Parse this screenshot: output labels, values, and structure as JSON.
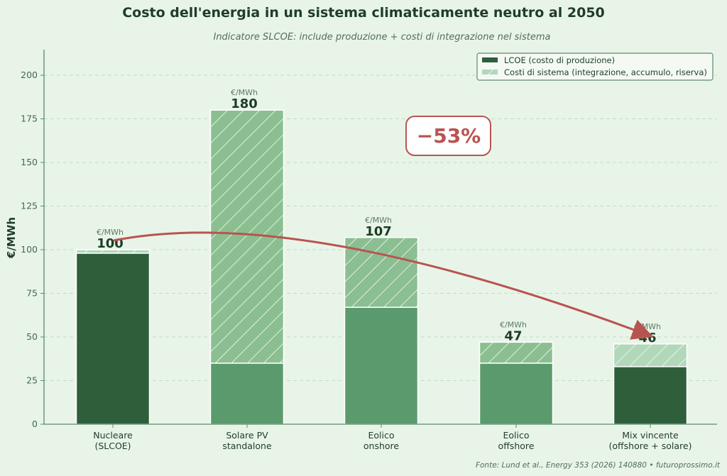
{
  "chart_data": {
    "type": "bar",
    "stacked": true,
    "title": "Costo dell'energia in un sistema climaticamente neutro al 2050",
    "subtitle": "Indicatore SLCOE: include produzione + costi di integrazione nel sistema",
    "ylabel": "€/MWh",
    "xlabel": "",
    "ylim": [
      0,
      215
    ],
    "yticks": [
      0,
      25,
      50,
      75,
      100,
      125,
      150,
      175,
      200
    ],
    "grid": true,
    "legend_position": "top-right",
    "categories": [
      [
        "Nucleare",
        "(SLCOE)"
      ],
      [
        "Solare PV",
        "standalone"
      ],
      [
        "Eolico",
        "onshore"
      ],
      [
        "Eolico",
        "offshore"
      ],
      [
        "Mix vincente",
        "(offshore + solare)"
      ]
    ],
    "series": [
      {
        "name": "LCOE (costo di produzione)",
        "values": [
          98,
          35,
          67,
          35,
          33
        ]
      },
      {
        "name": "Costi di sistema (integrazione, accumulo, riserva)",
        "values": [
          2,
          145,
          40,
          12,
          13
        ]
      }
    ],
    "totals": [
      100,
      180,
      107,
      47,
      46
    ],
    "total_unit": "€/MWh",
    "annotation": "−53%",
    "source": "Fonte: Lund et al., Energy 353 (2026) 140880  •  futuroprossimo.it",
    "colors": {
      "lcoe_highlight": "#2f5e3b",
      "lcoe": "#5b9a6c",
      "system": "#8bbf92",
      "system_light": "#b0d8b9",
      "arrow": "#b85450",
      "text": "#1e3d27"
    }
  }
}
